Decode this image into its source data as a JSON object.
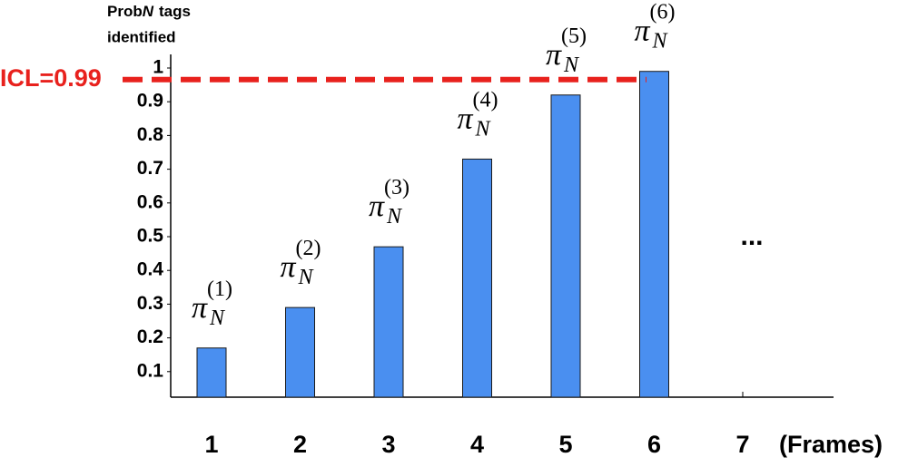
{
  "chart_data": {
    "type": "bar",
    "y_label": {
      "prefix": "Prob",
      "var": "N",
      "suffix": "tags",
      "line2": "identified"
    },
    "x_label": "(Frames)",
    "categories": [
      "1",
      "2",
      "3",
      "4",
      "5",
      "6",
      "7"
    ],
    "values": [
      0.17,
      0.29,
      0.47,
      0.73,
      0.92,
      0.99,
      null
    ],
    "color": "#4a8ff0",
    "bar_annotations": [
      {
        "symbol": "π",
        "sub": "N",
        "sup": "(1)"
      },
      {
        "symbol": "π",
        "sub": "N",
        "sup": "(2)"
      },
      {
        "symbol": "π",
        "sub": "N",
        "sup": "(3)"
      },
      {
        "symbol": "π",
        "sub": "N",
        "sup": "(4)"
      },
      {
        "symbol": "π",
        "sub": "N",
        "sup": "(5)"
      },
      {
        "symbol": "π",
        "sub": "N",
        "sup": "(6)"
      },
      null
    ],
    "continuation": "...",
    "reference_line": {
      "value": 0.99,
      "label": "ICL=0.99",
      "color": "#e8211d"
    },
    "ylim": [
      0,
      1
    ],
    "yticks": [
      0.1,
      0.2,
      0.3,
      0.4,
      0.5,
      0.6,
      0.7,
      0.8,
      0.9,
      1
    ]
  }
}
